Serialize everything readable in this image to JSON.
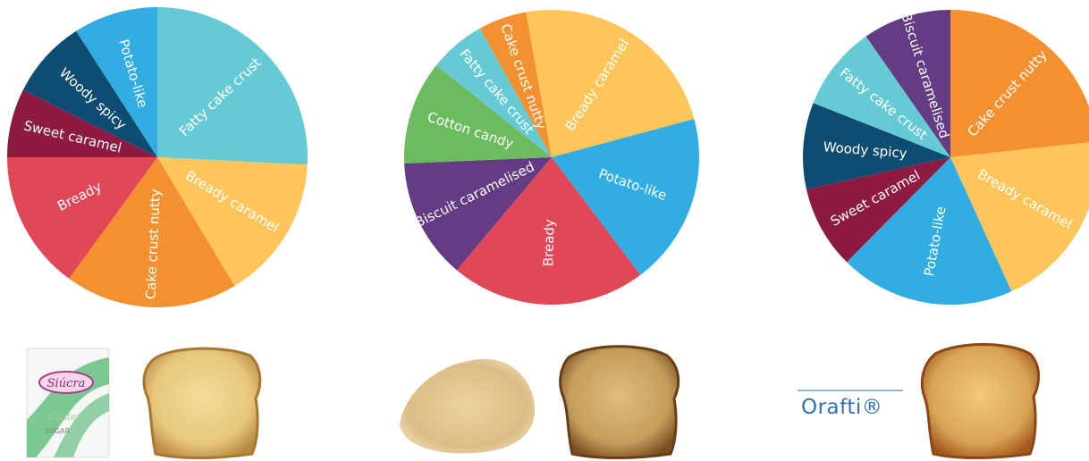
{
  "colors": {
    "Fatty cake crust": "#66cad5",
    "Bready caramel": "#fdc55a",
    "Cake crust nutty": "#f39130",
    "Bready": "#e24758",
    "Sweet caramel": "#8d1a42",
    "Woody spicy": "#0e4d71",
    "Potato-like": "#31ade1",
    "Biscuit caramelised": "#633c83",
    "Cotton candy": "#6cbc5f"
  },
  "chart_data": [
    {
      "type": "pie",
      "start_angle_deg": 0,
      "slices": [
        {
          "label": "Fatty cake crust",
          "value": 25.8
        },
        {
          "label": "Bready caramel",
          "value": 15.6
        },
        {
          "label": "Cake crust nutty",
          "value": 18.6
        },
        {
          "label": "Bready",
          "value": 15.0
        },
        {
          "label": "Sweet caramel",
          "value": 7.4
        },
        {
          "label": "Woody spicy",
          "value": 8.5
        },
        {
          "label": "Potato-like",
          "value": 9.1
        }
      ]
    },
    {
      "type": "pie",
      "start_angle_deg": -10,
      "slices": [
        {
          "label": "Bready caramel",
          "value": 23.6
        },
        {
          "label": "Potato-like",
          "value": 18.9
        },
        {
          "label": "Bready",
          "value": 21.4
        },
        {
          "label": "Biscuit caramelised",
          "value": 13.2
        },
        {
          "label": "Cotton candy",
          "value": 11.4
        },
        {
          "label": "Fatty cake crust",
          "value": 6.2
        },
        {
          "label": "Cake crust nutty",
          "value": 5.3
        }
      ]
    },
    {
      "type": "pie",
      "start_angle_deg": 0,
      "slices": [
        {
          "label": "Cake crust nutty",
          "value": 23.3
        },
        {
          "label": "Bready caramel",
          "value": 19.9
        },
        {
          "label": "Potato-like",
          "value": 19.2
        },
        {
          "label": "Sweet caramel",
          "value": 9.1
        },
        {
          "label": "Woody spicy",
          "value": 9.5
        },
        {
          "label": "Fatty cake crust",
          "value": 9.3
        },
        {
          "label": "Biscuit caramelised",
          "value": 9.7
        }
      ]
    }
  ],
  "products": {
    "sugar_pack": {
      "brand": "Siúcra",
      "line1": "Caster",
      "line2": "SUGAR"
    },
    "orafti": {
      "brand": "Orafti®"
    }
  }
}
